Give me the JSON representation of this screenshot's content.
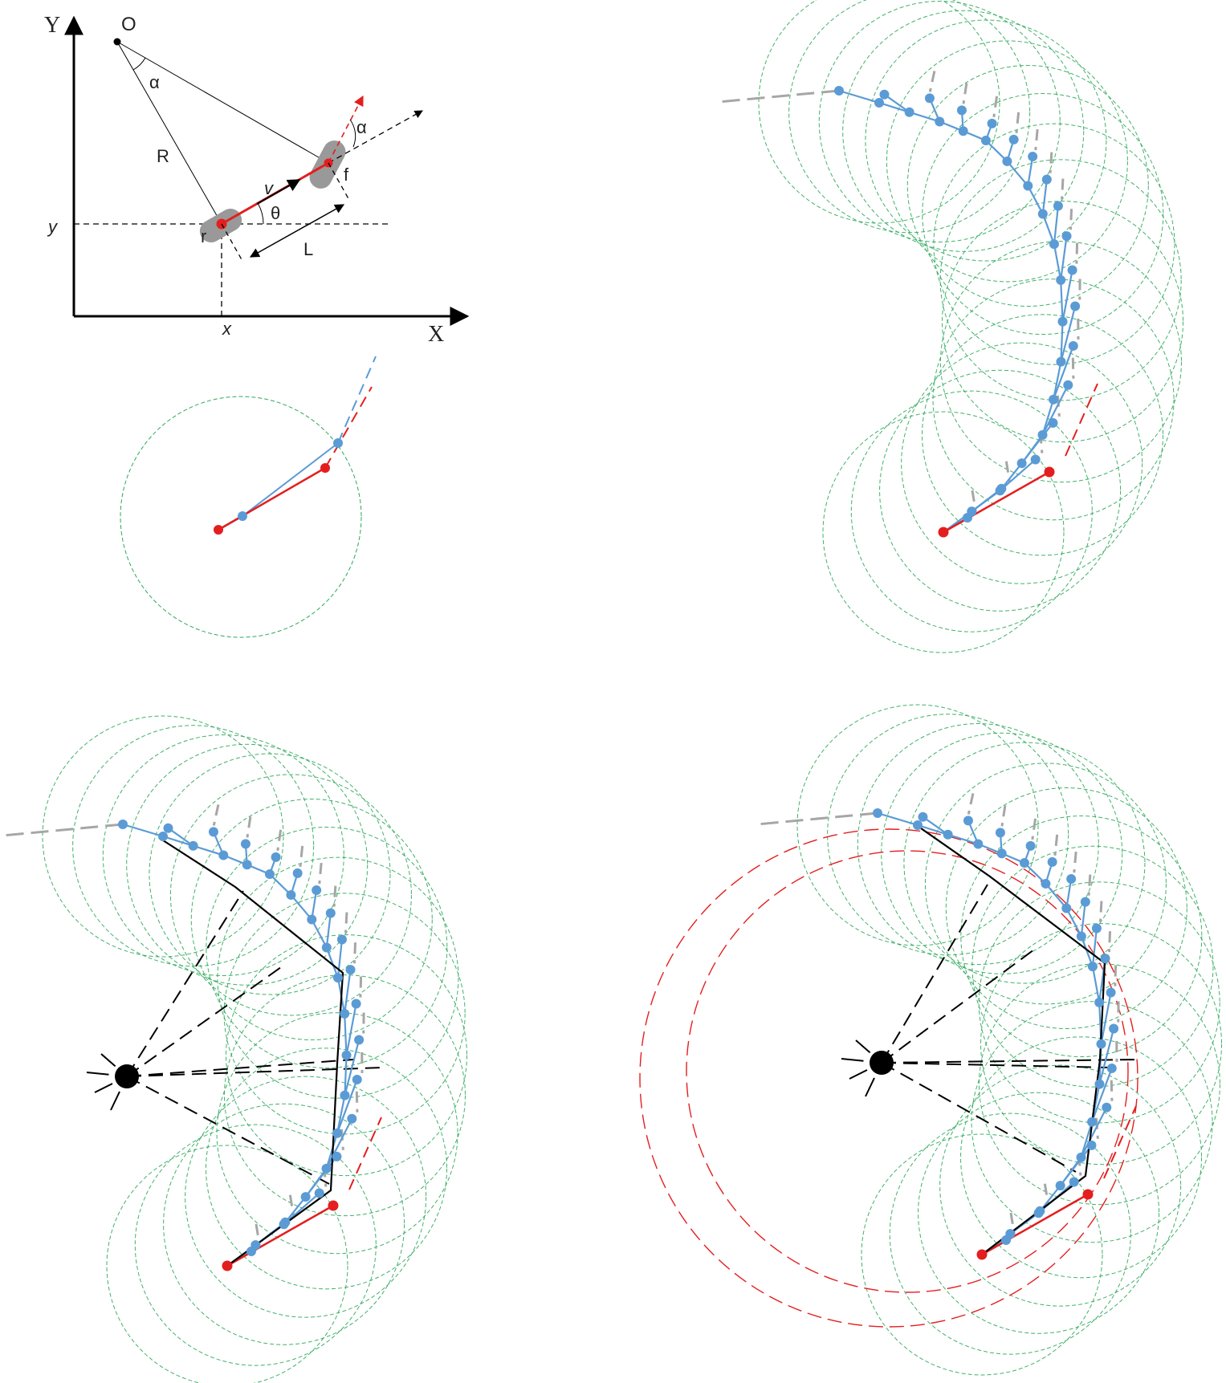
{
  "colors": {
    "red": "#e41e1e",
    "blue": "#5b9bd5",
    "green": "#2ca85a",
    "gray": "#a6a6a6",
    "black": "#000000"
  },
  "panel_kinematics": {
    "axis_x": "X",
    "axis_y": "Y",
    "origin": "O",
    "angle_alpha_center": "α",
    "angle_alpha_front": "α",
    "radius": "R",
    "velocity": "v",
    "heading": "θ",
    "length": "L",
    "rear": "r",
    "front": "f",
    "coord_y": "y",
    "coord_x": "x"
  }
}
